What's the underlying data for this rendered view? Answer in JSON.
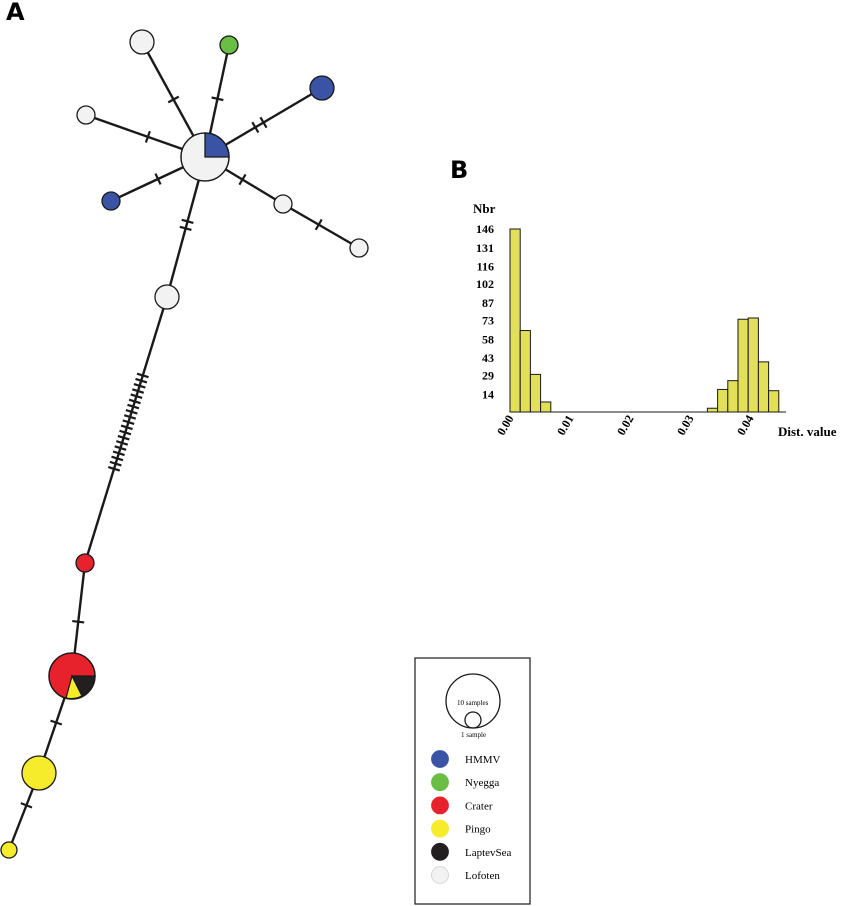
{
  "panel_a_label": "A",
  "panel_b_label": "B",
  "colors": {
    "HMMV": "#3a53a4",
    "Nyegga": "#6abd45",
    "Crater": "#e8222d",
    "Pingo": "#f7ec2b",
    "LaptevSea": "#231f20",
    "Lofoten": "#f2f2f2",
    "bar": "#e2df58"
  },
  "legend": {
    "size_large_label": "10 samples",
    "size_small_label": "1 sample",
    "items": [
      {
        "label": "HMMV",
        "color": "#3a53a4"
      },
      {
        "label": "Nyegga",
        "color": "#6abd45"
      },
      {
        "label": "Crater",
        "color": "#e8222d"
      },
      {
        "label": "Pingo",
        "color": "#f7ec2b"
      },
      {
        "label": "LaptevSea",
        "color": "#231f20"
      },
      {
        "label": "Lofoten",
        "color": "#f2f2f2"
      }
    ]
  },
  "chart_data": {
    "type": "bar",
    "ylabel": "Nbr",
    "xlabel": "Dist. value",
    "y_ticks": [
      14,
      29,
      43,
      58,
      73,
      87,
      102,
      116,
      131,
      146
    ],
    "x_ticks": [
      "0.00",
      "0.01",
      "0.02",
      "0.03",
      "0.04"
    ],
    "xlim": [
      0,
      0.046
    ],
    "ylim": [
      0,
      146
    ],
    "bin_width": 0.0017,
    "bins": [
      {
        "x": 0.0,
        "value": 146
      },
      {
        "x": 0.0017,
        "value": 65
      },
      {
        "x": 0.0034,
        "value": 30
      },
      {
        "x": 0.0051,
        "value": 8
      },
      {
        "x": 0.0295,
        "value": 0
      },
      {
        "x": 0.0312,
        "value": 0
      },
      {
        "x": 0.0329,
        "value": 3
      },
      {
        "x": 0.0346,
        "value": 18
      },
      {
        "x": 0.0363,
        "value": 25
      },
      {
        "x": 0.038,
        "value": 74
      },
      {
        "x": 0.0397,
        "value": 75
      },
      {
        "x": 0.0414,
        "value": 40
      },
      {
        "x": 0.0431,
        "value": 17
      }
    ]
  }
}
